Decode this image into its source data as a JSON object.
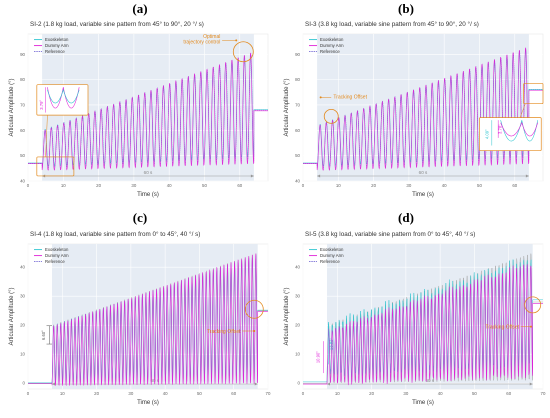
{
  "colors": {
    "exoskeleton": "#2fc5d0",
    "dummy_arm": "#e020d8",
    "reference": "#7a6fd6",
    "annotation": "#e38a1e",
    "band": "#e6ecf4",
    "gap_ref": "#a0a0a0"
  },
  "chart_data": [
    {
      "panel_label": "(a)",
      "type": "line",
      "title": "SI-2 (1.8 kg load, variable sine pattern from 45° to 90°, 20 °/ s)",
      "xlabel": "Time (s)",
      "ylabel": "Articular Amplitude (°)",
      "xlim": [
        0,
        68
      ],
      "ylim": [
        40,
        98
      ],
      "x_ticks": [
        0,
        10,
        20,
        30,
        40,
        50,
        60
      ],
      "y_ticks": [
        40,
        50,
        60,
        70,
        80,
        90
      ],
      "legend": [
        "Exoskeleton",
        "Dummy Arm",
        "Reference"
      ],
      "legend_position": "top-left",
      "duration_label": "60 s",
      "active_window": [
        4,
        64
      ],
      "signal": {
        "cycles": 34,
        "min_start": 45,
        "min_end": 48,
        "max_start": 60,
        "max_end": 91,
        "baseline_before": 47,
        "baseline_after": 68
      },
      "annotations": [
        {
          "text": "Optimal trajectory control",
          "color": "#e38a1e"
        },
        {
          "text": "3.79°",
          "color": "#e020d8"
        }
      ]
    },
    {
      "panel_label": "(b)",
      "type": "line",
      "title": "SI-3 (3.8 kg load, variable sine pattern from 45° to 90°, 20 °/ s)",
      "xlabel": "Time (s)",
      "ylabel": "Articular Amplitude (°)",
      "xlim": [
        0,
        68
      ],
      "ylim": [
        40,
        98
      ],
      "x_ticks": [
        0,
        10,
        20,
        30,
        40,
        50,
        60
      ],
      "y_ticks": [
        40,
        50,
        60,
        70,
        80,
        90
      ],
      "legend": [
        "Exoskeleton",
        "Dummy Arm",
        "Reference"
      ],
      "legend_position": "top-left",
      "duration_label": "60 s",
      "active_window": [
        4,
        64
      ],
      "signal": {
        "cycles": 34,
        "min_start": 45,
        "min_end": 48,
        "max_start": 62,
        "max_end": 93,
        "baseline_before": 47,
        "baseline_after": 76
      },
      "annotations": [
        {
          "text": "Tracking Offset",
          "color": "#e38a1e"
        },
        {
          "text": "3.78°",
          "color": "#e020d8"
        },
        {
          "text": "4.09°",
          "color": "#2fc5d0"
        }
      ]
    },
    {
      "panel_label": "(c)",
      "type": "line",
      "title": "SI-4 (1.8 kg load, variable sine pattern from 0° to 45°, 40 °/ s)",
      "xlabel": "Time (s)",
      "ylabel": "Articular Amplitude (°)",
      "xlim": [
        0,
        70
      ],
      "ylim": [
        -2,
        48
      ],
      "x_ticks": [
        0,
        10,
        20,
        30,
        40,
        50,
        60,
        70
      ],
      "y_ticks": [
        0,
        10,
        20,
        30,
        40
      ],
      "legend": [
        "Exoskeleton",
        "Dummy Arm",
        "Reference"
      ],
      "legend_position": "top-left",
      "duration_label": "60 s",
      "active_window": [
        7,
        67
      ],
      "signal": {
        "cycles": 58,
        "min_start": 0,
        "min_end": 1,
        "max_start": 20,
        "max_end": 45,
        "baseline_before": 0,
        "baseline_after": 25
      },
      "annotations": [
        {
          "text": "Tracking Offset",
          "color": "#e38a1e"
        },
        {
          "text": "6.60°",
          "color": "#555555"
        }
      ]
    },
    {
      "panel_label": "(d)",
      "type": "line",
      "title": "SI-5 (3.8 kg load, variable sine pattern from 0° to 45°, 40 °/ s)",
      "xlabel": "Time (s)",
      "ylabel": "Articular Amplitude (°)",
      "xlim": [
        0,
        70
      ],
      "ylim": [
        -2,
        48
      ],
      "x_ticks": [
        0,
        10,
        20,
        30,
        40,
        50,
        60,
        70
      ],
      "y_ticks": [
        0,
        10,
        20,
        30,
        40
      ],
      "legend": [
        "Exoskeleton",
        "Dummy Arm",
        "Reference"
      ],
      "legend_position": "top-left",
      "duration_label": "60 s",
      "active_window": [
        7,
        67
      ],
      "signal": {
        "cycles": 58,
        "min_start": 0,
        "min_end": 1,
        "max_start": 20,
        "max_end": 45,
        "baseline_before": 0,
        "baseline_after": 28
      },
      "annotations": [
        {
          "text": "Tracking Offset",
          "color": "#e38a1e"
        },
        {
          "text": "13.82°",
          "color": "#2fc5d0"
        },
        {
          "text": "10.90°",
          "color": "#e020d8"
        }
      ]
    }
  ]
}
